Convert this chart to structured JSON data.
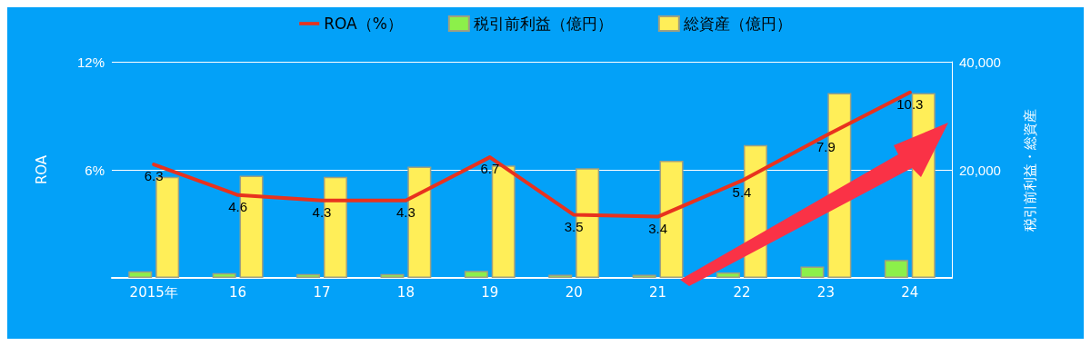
{
  "chart_data": {
    "type": "bar",
    "categories": [
      "2015年",
      "16",
      "17",
      "18",
      "19",
      "20",
      "21",
      "22",
      "23",
      "24"
    ],
    "series": [
      {
        "name": "ROA（%）",
        "type": "line",
        "color": "#e8321e",
        "values": [
          6.3,
          4.6,
          4.3,
          4.3,
          6.7,
          3.5,
          3.4,
          5.4,
          7.9,
          10.3
        ],
        "value_labels": [
          "6.3",
          "4.6",
          "4.3",
          "4.3",
          "6.7",
          "3.5",
          "3.4",
          "5.4",
          "7.9",
          "10.3"
        ]
      },
      {
        "name": "税引前利益（億円）",
        "axis": "y2",
        "color": "#8cf04a",
        "values": [
          1200,
          900,
          700,
          700,
          1300,
          600,
          600,
          1000,
          2100,
          3300
        ]
      },
      {
        "name": "総資産（億円）",
        "axis": "y2",
        "color": "#ffee58",
        "values": [
          18700,
          18900,
          18700,
          20600,
          20800,
          20300,
          21700,
          24600,
          34200,
          34200
        ]
      }
    ],
    "ylabel": "ROA",
    "y2label": "税引前利益・総資産",
    "ylim": [
      0,
      12
    ],
    "yticks": [
      {
        "value": 0,
        "label": null
      },
      {
        "value": 6,
        "label": "6%"
      },
      {
        "value": 12,
        "label": "12%"
      }
    ],
    "y2lim": [
      0,
      40000
    ],
    "y2ticks": [
      {
        "value": 0,
        "label": null
      },
      {
        "value": 20000,
        "label": "20,000"
      },
      {
        "value": 40000,
        "label": "40,000"
      }
    ],
    "grid": "y",
    "legend": "top",
    "marker": "none"
  }
}
